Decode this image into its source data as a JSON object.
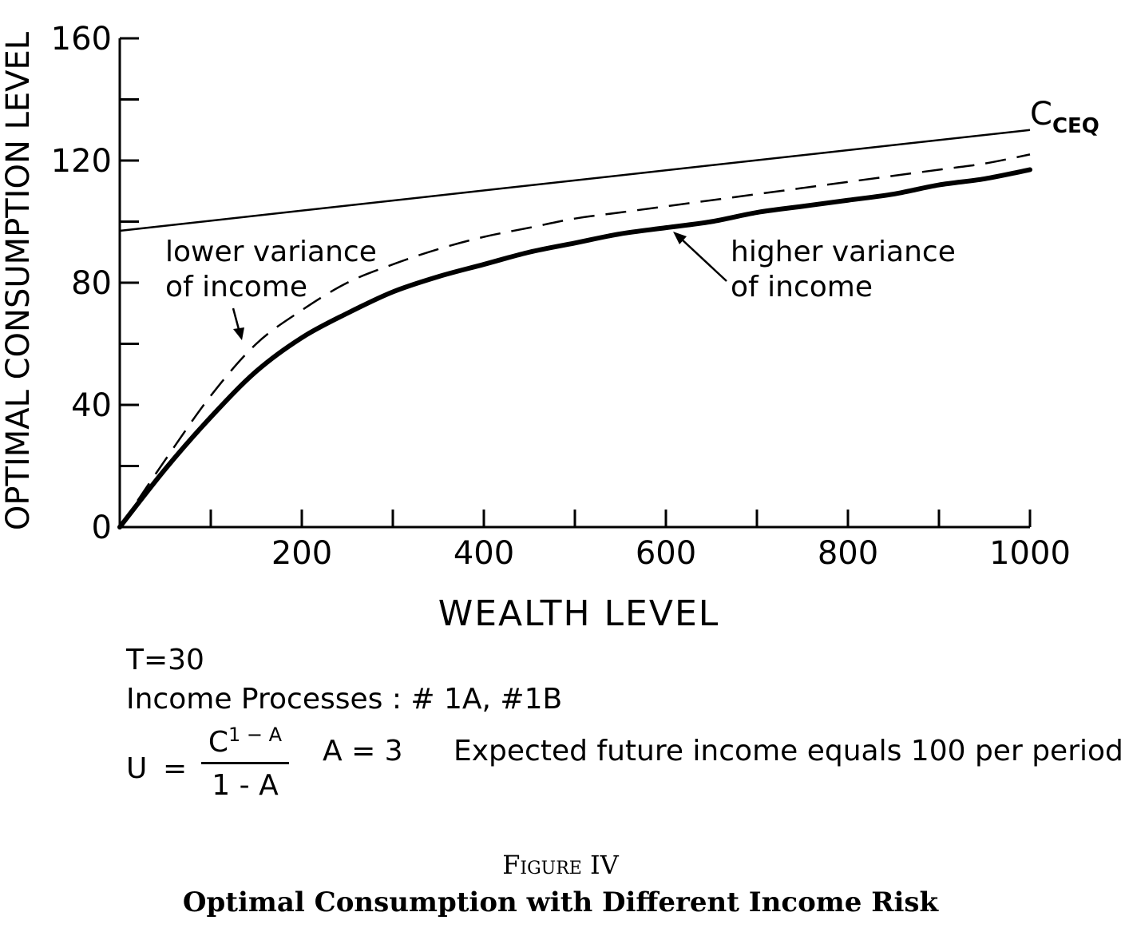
{
  "chart_data": {
    "type": "line",
    "xlabel": "WEALTH LEVEL",
    "ylabel": "OPTIMAL CONSUMPTION LEVEL",
    "xlim": [
      0,
      1000
    ],
    "ylim": [
      0,
      160
    ],
    "x_ticks": [
      "200",
      "400",
      "600",
      "800",
      "1000"
    ],
    "y_ticks": [
      "0",
      "40",
      "80",
      "120",
      "160"
    ],
    "grid": false,
    "series": [
      {
        "name": "C_CEQ",
        "label_main": "C",
        "label_sub": "CEQ",
        "style": "thin-solid",
        "x": [
          0,
          1000
        ],
        "y": [
          97,
          130
        ]
      },
      {
        "name": "lower variance of income",
        "style": "dashed",
        "x": [
          0,
          50,
          100,
          150,
          200,
          250,
          300,
          350,
          400,
          450,
          500,
          550,
          600,
          650,
          700,
          750,
          800,
          850,
          900,
          950,
          1000
        ],
        "y": [
          0,
          22,
          43,
          60,
          71,
          80,
          86,
          91,
          95,
          98,
          101,
          103,
          105,
          107,
          109,
          111,
          113,
          115,
          117,
          119,
          122
        ]
      },
      {
        "name": "higher variance of income",
        "style": "thick-solid",
        "x": [
          0,
          50,
          100,
          150,
          200,
          250,
          300,
          350,
          400,
          450,
          500,
          550,
          600,
          650,
          700,
          750,
          800,
          850,
          900,
          950,
          1000
        ],
        "y": [
          0,
          19,
          36,
          51,
          62,
          70,
          77,
          82,
          86,
          90,
          93,
          96,
          98,
          100,
          103,
          105,
          107,
          109,
          112,
          114,
          117
        ]
      }
    ],
    "annotations": [
      {
        "text_line1": "lower variance",
        "text_line2": "of income",
        "target_series": "lower variance of income"
      },
      {
        "text_line1": "higher variance",
        "text_line2": "of income",
        "target_series": "higher variance of income"
      }
    ]
  },
  "notes": {
    "line1": "T=30",
    "line2": "Income Processes : # 1A, #1B",
    "u_symbol": "U",
    "u_equals": "=",
    "u_num_base": "C",
    "u_num_exp": "1 − A",
    "u_den": "1 - A",
    "a_value": "A = 3",
    "expected": "Expected  future income equals 100 per period"
  },
  "caption": {
    "figure_label": "Figure IV",
    "title": "Optimal Consumption with Different Income Risk"
  }
}
